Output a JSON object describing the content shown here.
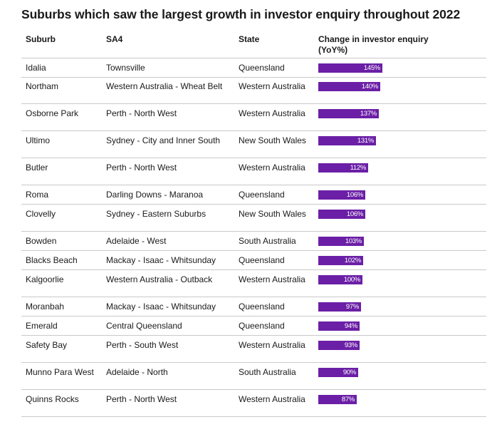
{
  "title": "Suburbs which saw the largest growth in investor enquiry throughout 2022",
  "headers": {
    "suburb": "Suburb",
    "sa4": "SA4",
    "state": "State",
    "change": "Change in investor enquiry",
    "change_unit": "(YoY%)"
  },
  "colors": {
    "bar": "#6a1fa6",
    "bar_label": "#ffffff",
    "divider": "#c9c9c9"
  },
  "chart_data": {
    "type": "table",
    "title": "Suburbs which saw the largest growth in investor enquiry throughout 2022",
    "columns": [
      "Suburb",
      "SA4",
      "State",
      "Change in investor enquiry (YoY%)"
    ],
    "rows": [
      {
        "suburb": "Idalia",
        "sa4": "Townsville",
        "state": "Queensland",
        "value": 145,
        "label": "145%"
      },
      {
        "suburb": "Northam",
        "sa4": "Western Australia - Wheat Belt",
        "state": "Western Australia",
        "value": 140,
        "label": "140%"
      },
      {
        "suburb": "Osborne Park",
        "sa4": "Perth - North West",
        "state": "Western Australia",
        "value": 137,
        "label": "137%"
      },
      {
        "suburb": "Ultimo",
        "sa4": "Sydney - City and Inner South",
        "state": "New South Wales",
        "value": 131,
        "label": "131%"
      },
      {
        "suburb": "Butler",
        "sa4": "Perth - North West",
        "state": "Western Australia",
        "value": 112,
        "label": "112%"
      },
      {
        "suburb": "Roma",
        "sa4": "Darling Downs - Maranoa",
        "state": "Queensland",
        "value": 106,
        "label": "106%"
      },
      {
        "suburb": "Clovelly",
        "sa4": "Sydney - Eastern Suburbs",
        "state": "New South Wales",
        "value": 106,
        "label": "106%"
      },
      {
        "suburb": "Bowden",
        "sa4": "Adelaide - West",
        "state": "South Australia",
        "value": 103,
        "label": "103%"
      },
      {
        "suburb": "Blacks Beach",
        "sa4": "Mackay - Isaac - Whitsunday",
        "state": "Queensland",
        "value": 102,
        "label": "102%"
      },
      {
        "suburb": "Kalgoorlie",
        "sa4": "Western Australia - Outback",
        "state": "Western Australia",
        "value": 100,
        "label": "100%"
      },
      {
        "suburb": "Moranbah",
        "sa4": "Mackay - Isaac - Whitsunday",
        "state": "Queensland",
        "value": 97,
        "label": "97%"
      },
      {
        "suburb": "Emerald",
        "sa4": "Central Queensland",
        "state": "Queensland",
        "value": 94,
        "label": "94%"
      },
      {
        "suburb": "Safety Bay",
        "sa4": "Perth - South West",
        "state": "Western Australia",
        "value": 93,
        "label": "93%"
      },
      {
        "suburb": "Munno Para West",
        "sa4": "Adelaide - North",
        "state": "South Australia",
        "value": 90,
        "label": "90%"
      },
      {
        "suburb": "Quinns Rocks",
        "sa4": "Perth - North West",
        "state": "Western Australia",
        "value": 87,
        "label": "87%"
      }
    ]
  }
}
